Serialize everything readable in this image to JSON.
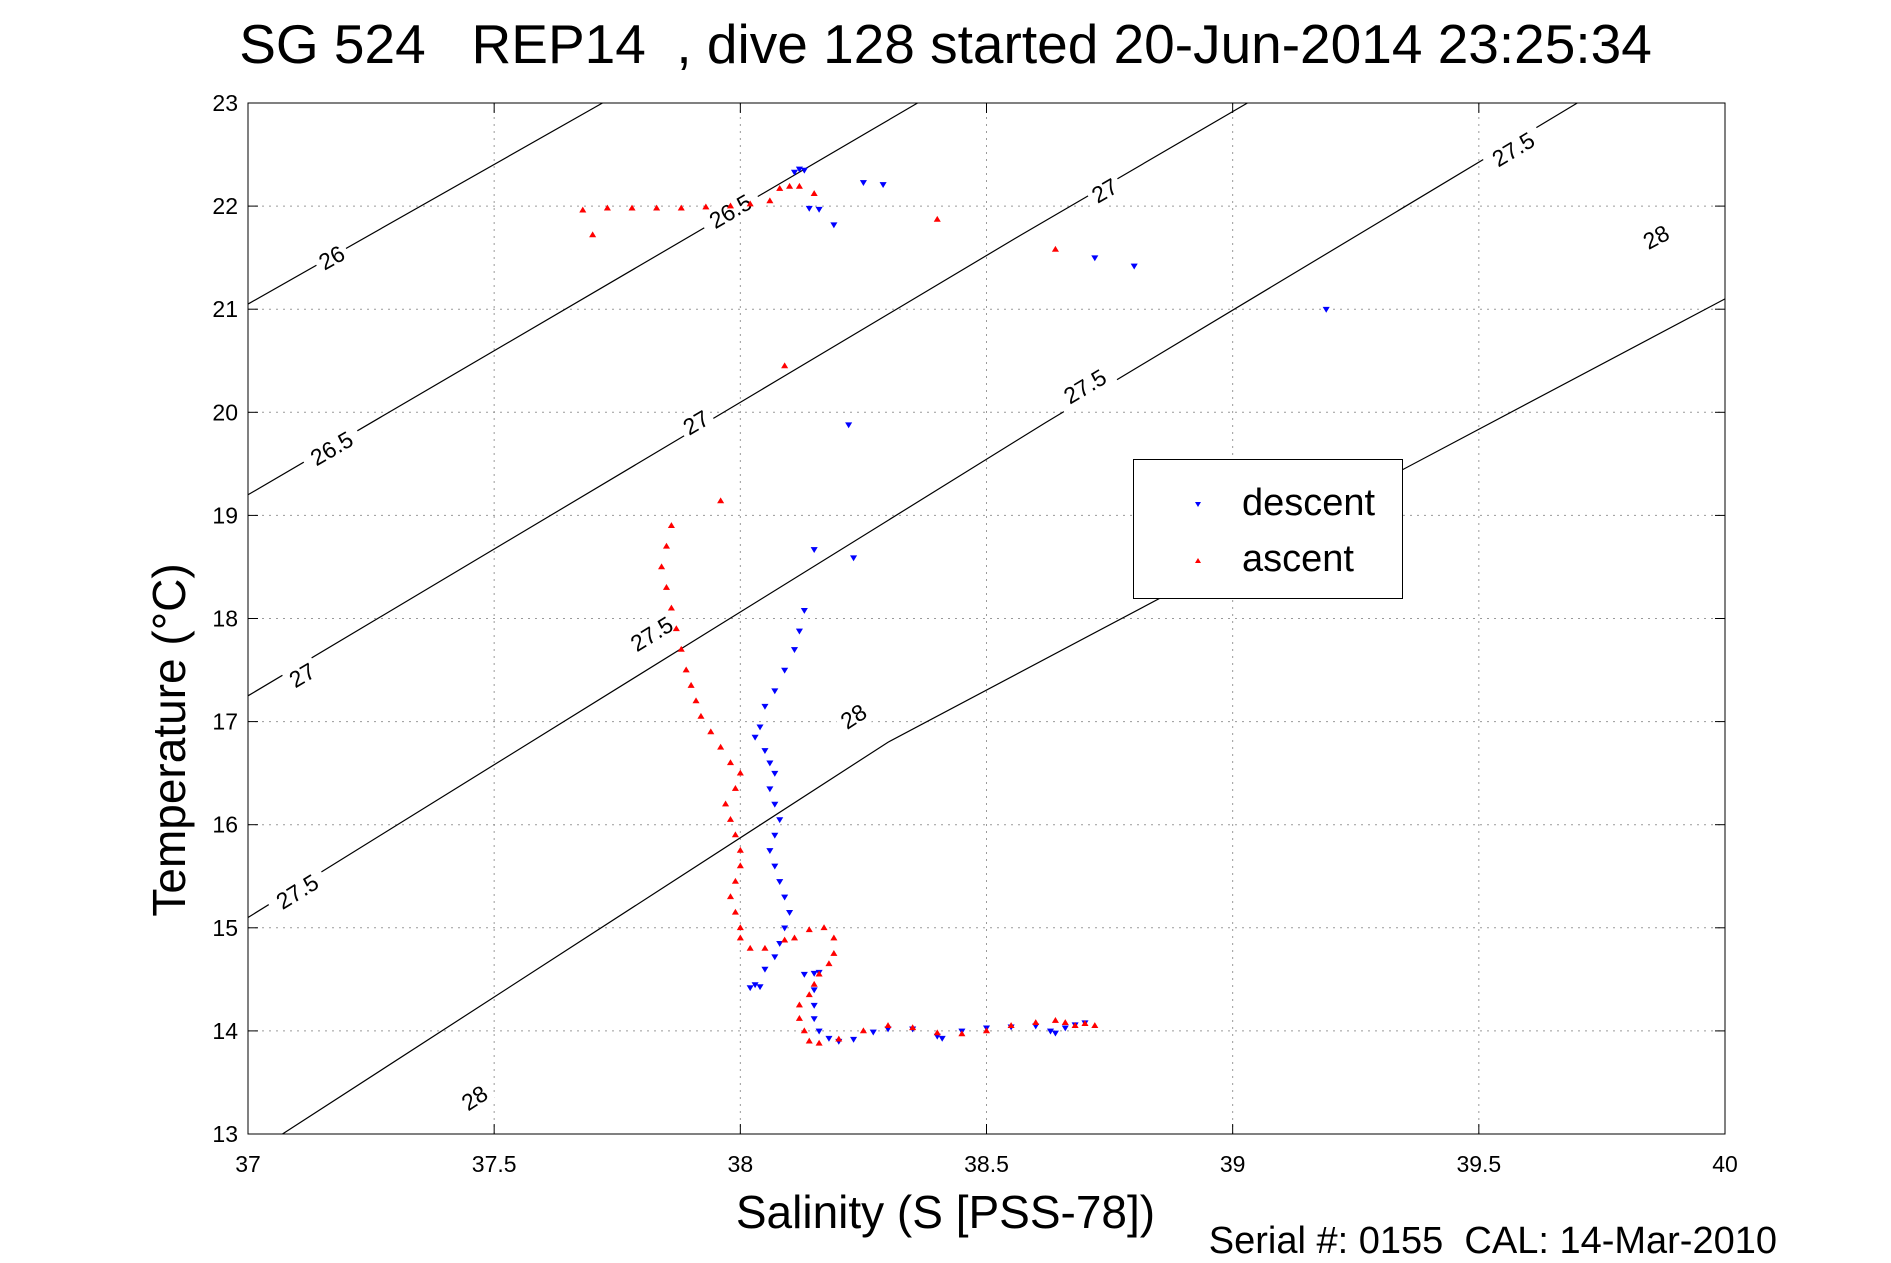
{
  "title": "SG 524   REP14  , dive 128 started 20-Jun-2014 23:25:34",
  "footer": "Serial #: 0155  CAL: 14-Mar-2010",
  "chart_data": {
    "type": "scatter",
    "title": "SG 524   REP14  , dive 128 started 20-Jun-2014 23:25:34",
    "xlabel": "Salinity (S [PSS-78])",
    "ylabel": "Temperature (°C)",
    "xlim": [
      37,
      40
    ],
    "ylim": [
      13,
      23
    ],
    "xticks": [
      "37",
      "37.5",
      "38",
      "38.5",
      "39",
      "39.5",
      "40"
    ],
    "yticks": [
      "13",
      "14",
      "15",
      "16",
      "17",
      "18",
      "19",
      "20",
      "21",
      "22",
      "23"
    ],
    "grid": true,
    "legend_position": "center-right",
    "legend": [
      "descent",
      "ascent"
    ],
    "colors": {
      "descent": "#0000ff",
      "ascent": "#ff0000",
      "contour": "#000000"
    },
    "density_contours": [
      {
        "level": 26,
        "points": [
          [
            37,
            21.05
          ],
          [
            37.72,
            23.0
          ]
        ],
        "labels": [
          {
            "text": "26",
            "at": [
              37.17,
              21.5
            ]
          }
        ]
      },
      {
        "level": 26.5,
        "points": [
          [
            37,
            19.2
          ],
          [
            38.36,
            23.0
          ]
        ],
        "labels": [
          {
            "text": "26.5",
            "at": [
              37.17,
              19.65
            ]
          },
          {
            "text": "26.5",
            "at": [
              37.98,
              21.95
            ]
          }
        ]
      },
      {
        "level": 27,
        "points": [
          [
            37,
            17.25
          ],
          [
            38.57,
            21.72
          ],
          [
            39.03,
            23.0
          ]
        ],
        "labels": [
          {
            "text": "27",
            "at": [
              37.11,
              17.45
            ]
          },
          {
            "text": "27",
            "at": [
              37.91,
              19.9
            ]
          },
          {
            "text": "27",
            "at": [
              38.74,
              22.15
            ]
          }
        ]
      },
      {
        "level": 27.5,
        "points": [
          [
            37,
            15.1
          ],
          [
            38.62,
            19.9
          ],
          [
            39.7,
            23.0
          ]
        ],
        "labels": [
          {
            "text": "27.5",
            "at": [
              37.1,
              15.35
            ]
          },
          {
            "text": "27.5",
            "at": [
              37.82,
              17.85
            ]
          },
          {
            "text": "27.5",
            "at": [
              38.7,
              20.25
            ]
          },
          {
            "text": "27.5",
            "at": [
              39.57,
              22.55
            ]
          }
        ]
      },
      {
        "level": 28,
        "points": [
          [
            37.07,
            13.0
          ],
          [
            38.3,
            16.8
          ],
          [
            40.0,
            21.1
          ]
        ],
        "labels": [
          {
            "text": "28",
            "at": [
              37.46,
              13.35
            ]
          },
          {
            "text": "28",
            "at": [
              38.23,
              17.05
            ]
          },
          {
            "text": "28",
            "at": [
              39.86,
              21.7
            ]
          }
        ]
      }
    ],
    "series": [
      {
        "name": "descent",
        "points": [
          [
            38.12,
            22.36
          ],
          [
            38.13,
            22.35
          ],
          [
            38.11,
            22.33
          ],
          [
            38.25,
            22.23
          ],
          [
            38.29,
            22.21
          ],
          [
            38.14,
            21.98
          ],
          [
            38.16,
            21.97
          ],
          [
            38.19,
            21.82
          ],
          [
            38.72,
            21.5
          ],
          [
            38.8,
            21.42
          ],
          [
            39.19,
            21.0
          ],
          [
            38.22,
            19.88
          ],
          [
            38.15,
            18.67
          ],
          [
            38.23,
            18.59
          ],
          [
            38.13,
            18.08
          ],
          [
            38.12,
            17.88
          ],
          [
            38.11,
            17.7
          ],
          [
            38.09,
            17.5
          ],
          [
            38.07,
            17.3
          ],
          [
            38.05,
            17.15
          ],
          [
            38.04,
            16.95
          ],
          [
            38.03,
            16.85
          ],
          [
            38.05,
            16.72
          ],
          [
            38.06,
            16.6
          ],
          [
            38.07,
            16.5
          ],
          [
            38.06,
            16.35
          ],
          [
            38.07,
            16.2
          ],
          [
            38.08,
            16.05
          ],
          [
            38.07,
            15.9
          ],
          [
            38.06,
            15.75
          ],
          [
            38.07,
            15.6
          ],
          [
            38.08,
            15.45
          ],
          [
            38.09,
            15.3
          ],
          [
            38.1,
            15.15
          ],
          [
            38.09,
            15.0
          ],
          [
            38.08,
            14.85
          ],
          [
            38.07,
            14.72
          ],
          [
            38.05,
            14.6
          ],
          [
            38.03,
            14.45
          ],
          [
            38.02,
            14.42
          ],
          [
            38.04,
            14.43
          ],
          [
            38.13,
            14.55
          ],
          [
            38.15,
            14.56
          ],
          [
            38.16,
            14.57
          ],
          [
            38.15,
            14.4
          ],
          [
            38.15,
            14.25
          ],
          [
            38.15,
            14.12
          ],
          [
            38.16,
            14.0
          ],
          [
            38.18,
            13.93
          ],
          [
            38.2,
            13.9
          ],
          [
            38.23,
            13.92
          ],
          [
            38.27,
            13.99
          ],
          [
            38.3,
            14.02
          ],
          [
            38.35,
            14.02
          ],
          [
            38.4,
            13.95
          ],
          [
            38.41,
            13.93
          ],
          [
            38.45,
            14.0
          ],
          [
            38.5,
            14.03
          ],
          [
            38.55,
            14.04
          ],
          [
            38.6,
            14.05
          ],
          [
            38.63,
            14.0
          ],
          [
            38.64,
            13.98
          ],
          [
            38.66,
            14.03
          ],
          [
            38.68,
            14.06
          ],
          [
            38.7,
            14.08
          ]
        ]
      },
      {
        "name": "ascent",
        "points": [
          [
            37.68,
            21.96
          ],
          [
            37.7,
            21.72
          ],
          [
            37.73,
            21.98
          ],
          [
            37.78,
            21.98
          ],
          [
            37.83,
            21.98
          ],
          [
            37.88,
            21.98
          ],
          [
            37.93,
            21.99
          ],
          [
            37.98,
            22.0
          ],
          [
            38.02,
            22.02
          ],
          [
            38.06,
            22.05
          ],
          [
            38.08,
            22.17
          ],
          [
            38.1,
            22.19
          ],
          [
            38.12,
            22.19
          ],
          [
            38.15,
            22.12
          ],
          [
            38.4,
            21.87
          ],
          [
            38.64,
            21.58
          ],
          [
            38.09,
            20.45
          ],
          [
            37.96,
            19.14
          ],
          [
            37.86,
            18.9
          ],
          [
            37.85,
            18.7
          ],
          [
            37.84,
            18.5
          ],
          [
            37.85,
            18.3
          ],
          [
            37.86,
            18.1
          ],
          [
            37.87,
            17.9
          ],
          [
            37.88,
            17.7
          ],
          [
            37.89,
            17.5
          ],
          [
            37.9,
            17.35
          ],
          [
            37.91,
            17.2
          ],
          [
            37.92,
            17.05
          ],
          [
            37.94,
            16.9
          ],
          [
            37.96,
            16.75
          ],
          [
            37.98,
            16.6
          ],
          [
            38.0,
            16.5
          ],
          [
            37.99,
            16.35
          ],
          [
            37.97,
            16.2
          ],
          [
            37.98,
            16.05
          ],
          [
            37.99,
            15.9
          ],
          [
            38.0,
            15.75
          ],
          [
            38.0,
            15.6
          ],
          [
            37.99,
            15.45
          ],
          [
            37.98,
            15.3
          ],
          [
            37.99,
            15.15
          ],
          [
            38.0,
            15.0
          ],
          [
            38.0,
            14.9
          ],
          [
            38.02,
            14.8
          ],
          [
            38.05,
            14.8
          ],
          [
            38.09,
            14.88
          ],
          [
            38.11,
            14.9
          ],
          [
            38.14,
            14.98
          ],
          [
            38.17,
            15.0
          ],
          [
            38.19,
            14.9
          ],
          [
            38.19,
            14.75
          ],
          [
            38.18,
            14.65
          ],
          [
            38.16,
            14.55
          ],
          [
            38.15,
            14.45
          ],
          [
            38.14,
            14.35
          ],
          [
            38.12,
            14.25
          ],
          [
            38.12,
            14.12
          ],
          [
            38.13,
            14.0
          ],
          [
            38.14,
            13.9
          ],
          [
            38.16,
            13.88
          ],
          [
            38.2,
            13.92
          ],
          [
            38.25,
            14.0
          ],
          [
            38.3,
            14.05
          ],
          [
            38.35,
            14.03
          ],
          [
            38.4,
            13.98
          ],
          [
            38.45,
            13.97
          ],
          [
            38.5,
            14.0
          ],
          [
            38.55,
            14.05
          ],
          [
            38.6,
            14.08
          ],
          [
            38.64,
            14.1
          ],
          [
            38.66,
            14.08
          ],
          [
            38.68,
            14.05
          ],
          [
            38.7,
            14.07
          ],
          [
            38.72,
            14.05
          ]
        ]
      }
    ]
  }
}
